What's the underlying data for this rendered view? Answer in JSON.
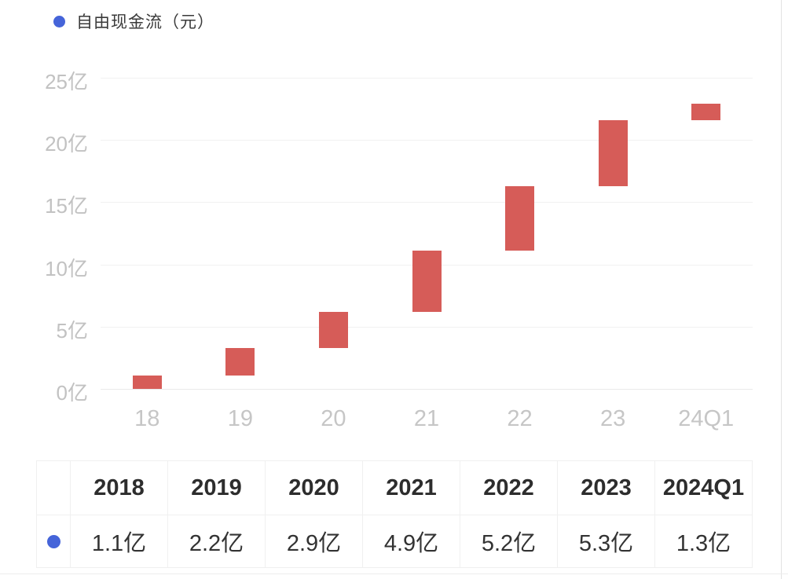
{
  "legend": {
    "label": "自由现金流（元）",
    "dot_color": "#4564d9"
  },
  "chart_data": {
    "type": "bar",
    "subtype": "waterfall",
    "title": "",
    "xlabel": "",
    "ylabel": "",
    "categories": [
      "18",
      "19",
      "20",
      "21",
      "22",
      "23",
      "24Q1"
    ],
    "series": [
      {
        "name": "自由现金流（元）",
        "increments": [
          1.1,
          2.2,
          2.9,
          4.9,
          5.2,
          5.3,
          1.3
        ],
        "bar_start": [
          0,
          1.1,
          3.3,
          6.2,
          11.1,
          16.3,
          21.6
        ],
        "bar_end": [
          1.1,
          3.3,
          6.2,
          11.1,
          16.3,
          21.6,
          22.9
        ]
      }
    ],
    "unit": "亿",
    "ylim": [
      0,
      25
    ],
    "y_tick_values": [
      0,
      5,
      10,
      15,
      20,
      25
    ],
    "y_tick_labels": [
      "0亿",
      "5亿",
      "10亿",
      "15亿",
      "20亿",
      "25亿"
    ],
    "grid": true,
    "legend_position": "top-left",
    "bar_color": "#d65c58"
  },
  "table": {
    "headers": [
      "2018",
      "2019",
      "2020",
      "2021",
      "2022",
      "2023",
      "2024Q1"
    ],
    "values": [
      "1.1亿",
      "2.2亿",
      "2.9亿",
      "4.9亿",
      "5.2亿",
      "5.3亿",
      "1.3亿"
    ],
    "marker_color": "#4564d9"
  },
  "colors": {
    "bar": "#d65c58",
    "legend_dot": "#4564d9",
    "gridline": "#f1f1f1",
    "axis_text": "#c2c2c2",
    "table_border": "#f0f0f0"
  }
}
